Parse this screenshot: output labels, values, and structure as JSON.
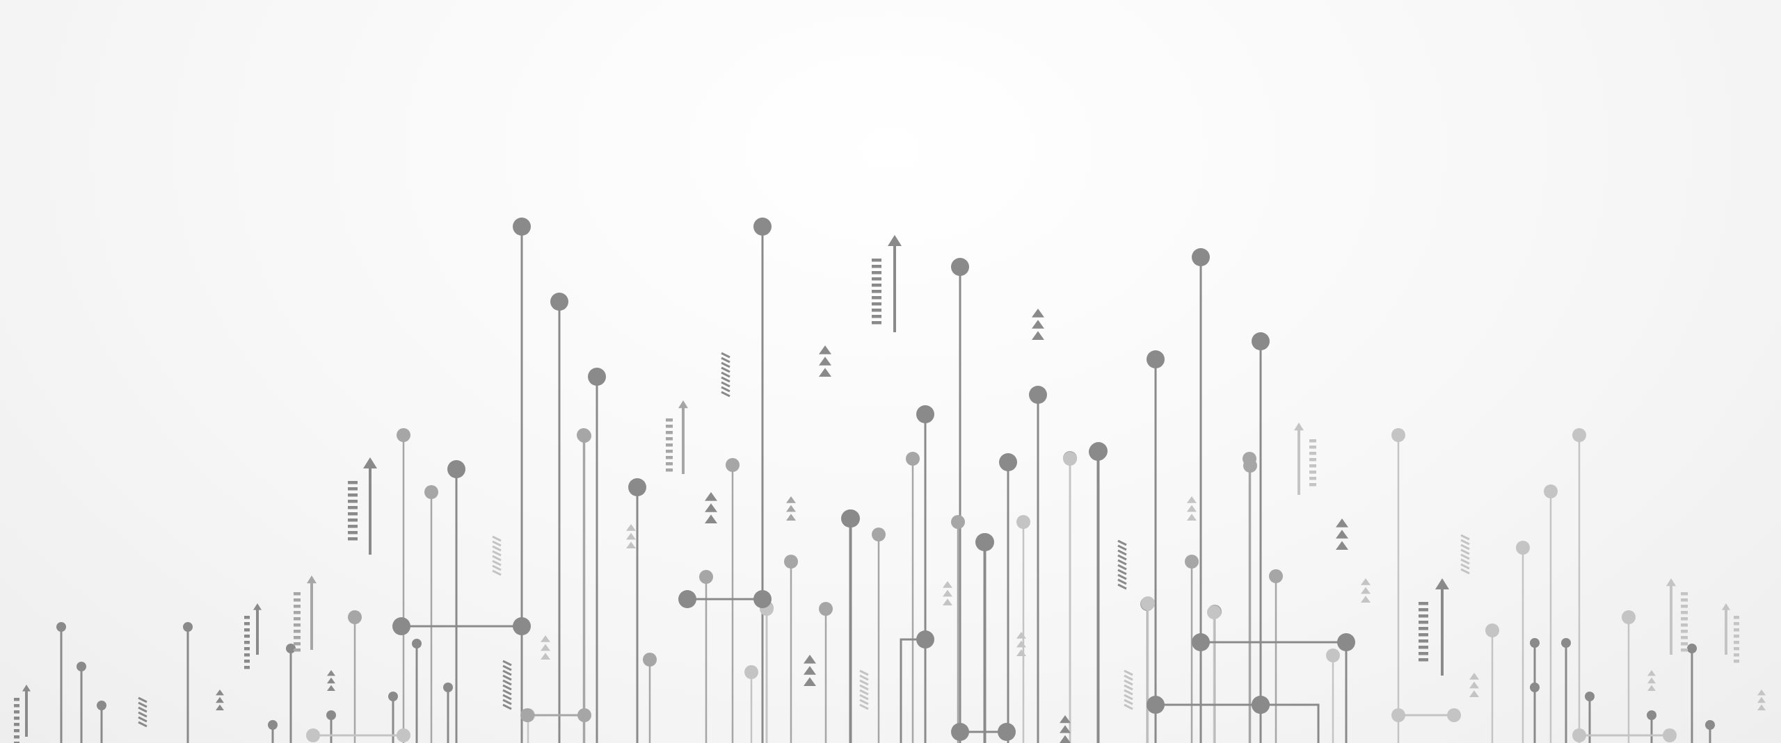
{
  "scene": {
    "description_free": true,
    "colors": {
      "background": "#f5f5f5",
      "dark": "#8a8a8a",
      "mid": "#a6a6a6",
      "light": "#c4c4c4"
    }
  }
}
